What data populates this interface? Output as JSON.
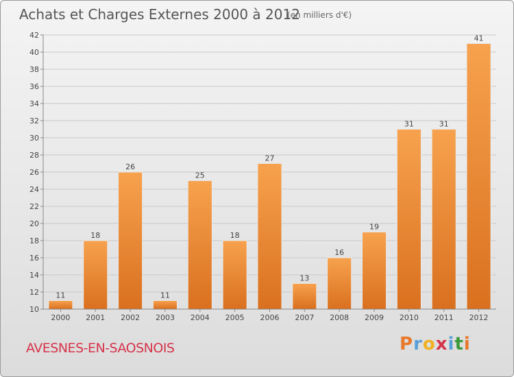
{
  "header": {
    "title": "Achats et Charges Externes 2000 à 2012",
    "subtitle": "(en milliers d'€)"
  },
  "commune": "AVESNES-EN-SAOSNOIS",
  "logo": {
    "letters": [
      "P",
      "r",
      "o",
      "x",
      "i",
      "t",
      "i"
    ],
    "colors": [
      "#e8782a",
      "#5aa0d8",
      "#f0b020",
      "#d6334a",
      "#5aa0d8",
      "#3a9a3a",
      "#e8782a"
    ]
  },
  "chart_data": {
    "type": "bar",
    "categories": [
      "2000",
      "2001",
      "2002",
      "2003",
      "2004",
      "2005",
      "2006",
      "2007",
      "2008",
      "2009",
      "2010",
      "2011",
      "2012"
    ],
    "values": [
      11,
      18,
      26,
      11,
      25,
      18,
      27,
      13,
      16,
      19,
      31,
      31,
      41
    ],
    "ylim": [
      10,
      42
    ],
    "yticks": [
      10,
      12,
      14,
      16,
      18,
      20,
      22,
      24,
      26,
      28,
      30,
      32,
      34,
      36,
      38,
      40,
      42
    ],
    "grid": true,
    "bar_color": "#f0953e"
  }
}
